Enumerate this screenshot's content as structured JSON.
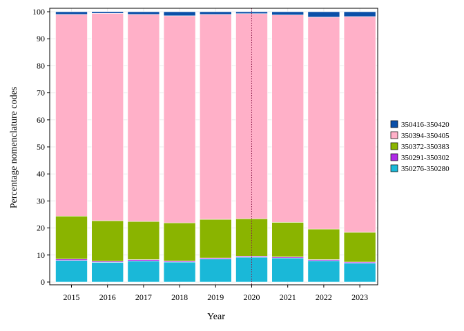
{
  "chart_data": {
    "type": "bar",
    "stacked": true,
    "title": "",
    "xlabel": "Year",
    "ylabel": "Percentage nomenclature codes",
    "ylim": [
      0,
      100
    ],
    "yticks": [
      0,
      10,
      20,
      30,
      40,
      50,
      60,
      70,
      80,
      90,
      100
    ],
    "grid": true,
    "legend_position": "right",
    "reference_line": {
      "x": "2020",
      "style": "dotted",
      "color": "#8b1a4a"
    },
    "categories": [
      "2015",
      "2016",
      "2017",
      "2018",
      "2019",
      "2020",
      "2021",
      "2022",
      "2023"
    ],
    "series": [
      {
        "name": "350276-350280",
        "color": "#1ab8d8",
        "values": [
          8.0,
          7.3,
          7.8,
          7.4,
          8.5,
          9.2,
          8.9,
          7.9,
          7.0
        ]
      },
      {
        "name": "350291-350302",
        "color": "#b02ae8",
        "values": [
          0.5,
          0.4,
          0.5,
          0.4,
          0.4,
          0.4,
          0.4,
          0.4,
          0.4
        ]
      },
      {
        "name": "350372-350383",
        "color": "#8ab400",
        "values": [
          15.9,
          15.0,
          14.1,
          14.1,
          14.3,
          13.8,
          12.8,
          11.3,
          11.0
        ]
      },
      {
        "name": "350394-350405",
        "color": "#ffb0c8",
        "values": [
          74.6,
          76.7,
          76.6,
          76.6,
          75.8,
          75.9,
          76.7,
          78.4,
          79.8
        ]
      },
      {
        "name": "350416-350420",
        "color": "#0a4fa8",
        "values": [
          1.0,
          0.6,
          1.0,
          1.5,
          1.0,
          0.7,
          1.2,
          2.0,
          1.8
        ]
      }
    ]
  }
}
